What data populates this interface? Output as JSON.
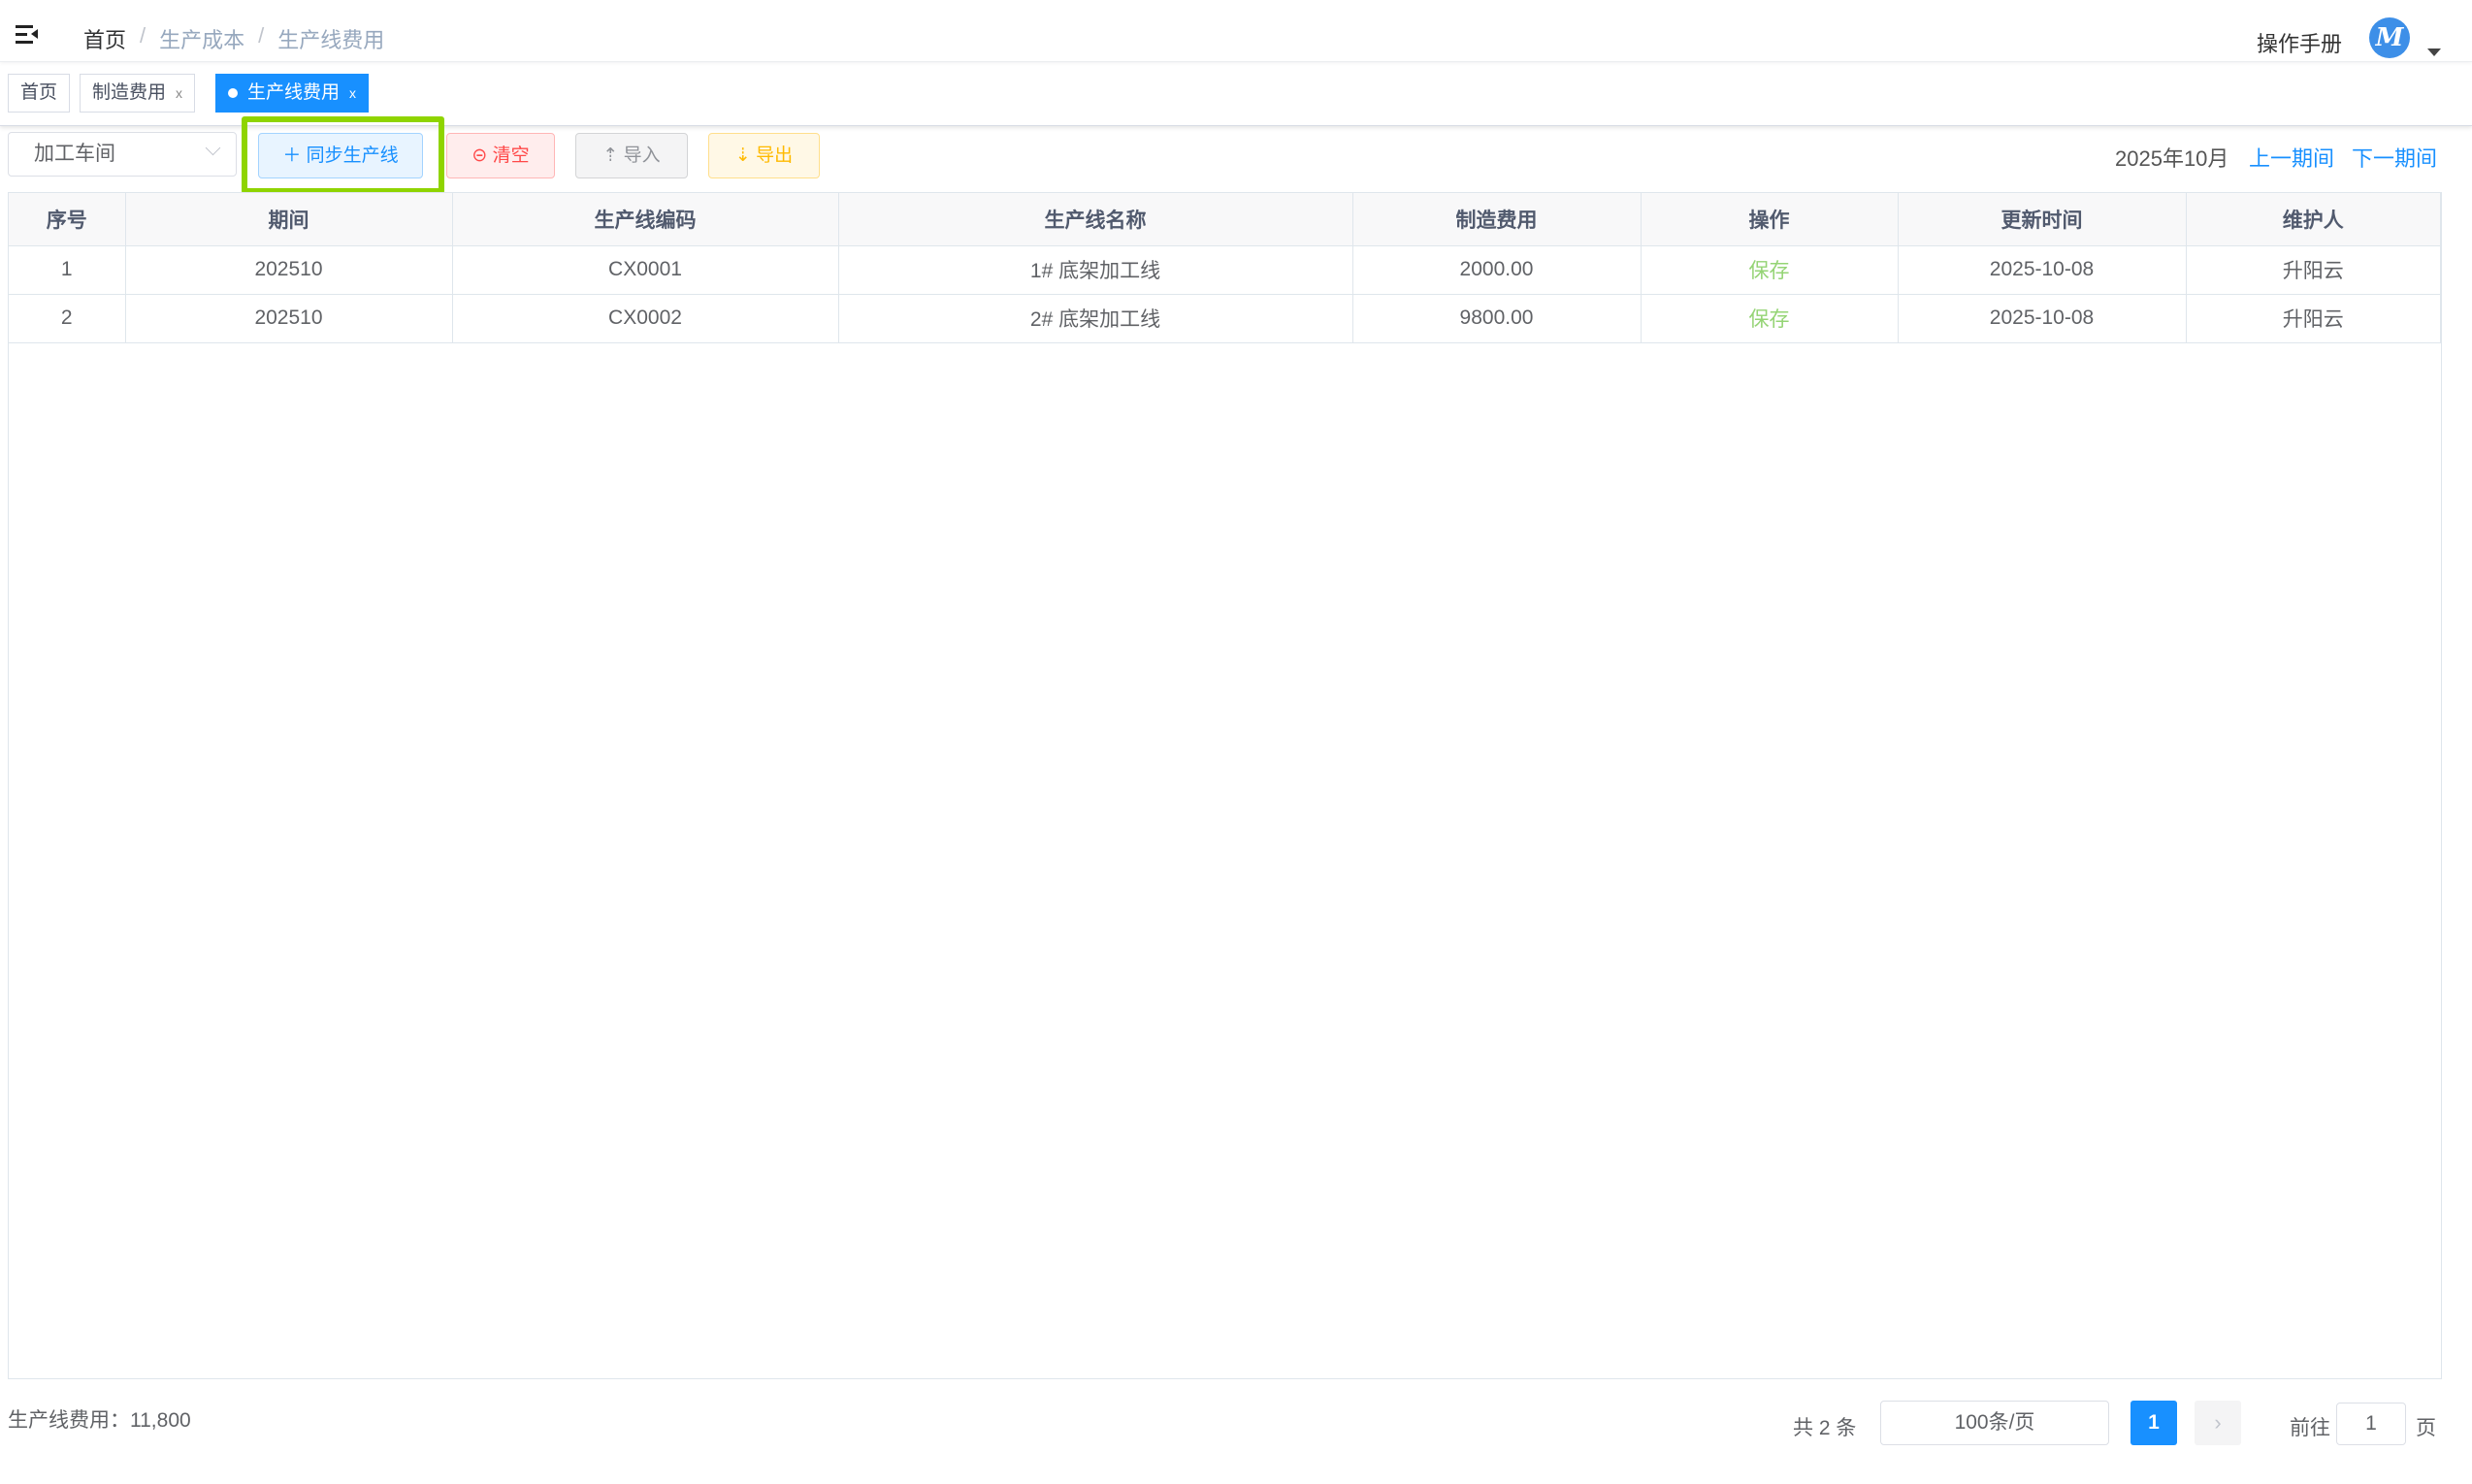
{
  "header": {
    "breadcrumb": [
      "首页",
      "生产成本",
      "生产线费用"
    ],
    "manual": "操作手册",
    "avatar_letter": "M",
    "icons": {
      "menu": "hamburger-icon",
      "avatar": "avatar",
      "dropdown": "caret-down-icon"
    }
  },
  "tabs": [
    {
      "label": "首页",
      "closable": false
    },
    {
      "label": "制造费用",
      "closable": true
    },
    {
      "label": "生产线费用",
      "closable": true,
      "active": true
    }
  ],
  "tab_close": "x",
  "toolbar": {
    "workshop": "加工车间",
    "sync": "同步生产线",
    "clear": "清空",
    "import": "导入",
    "export": "导出",
    "period": "2025年10月",
    "prev": "上一期间",
    "next": "下一期间",
    "icons": {
      "sync": "＋",
      "clear": "⊝",
      "import": "⇡",
      "export": "⇣"
    }
  },
  "colors": {
    "primary": "#1890ff",
    "danger": "#ff4949",
    "warning": "#ffba00",
    "success": "#95d475",
    "highlight": "#8fd400"
  },
  "table": {
    "columns": [
      "序号",
      "期间",
      "生产线编码",
      "生产线名称",
      "制造费用",
      "操作",
      "更新时间",
      "维护人"
    ],
    "rows": [
      [
        "1",
        "202510",
        "CX0001",
        "1# 底架加工线",
        "2000.00",
        "保存",
        "2025-10-08",
        "升阳云"
      ],
      [
        "2",
        "202510",
        "CX0002",
        "2# 底架加工线",
        "9800.00",
        "保存",
        "2025-10-08",
        "升阳云"
      ]
    ]
  },
  "footer": {
    "summary": "生产线费用：11,800",
    "total": "共 2 条",
    "page_size": "100条/页",
    "current_page": "1",
    "next": "›",
    "goto": "前往",
    "goto_value": "1",
    "page_word": "页"
  }
}
